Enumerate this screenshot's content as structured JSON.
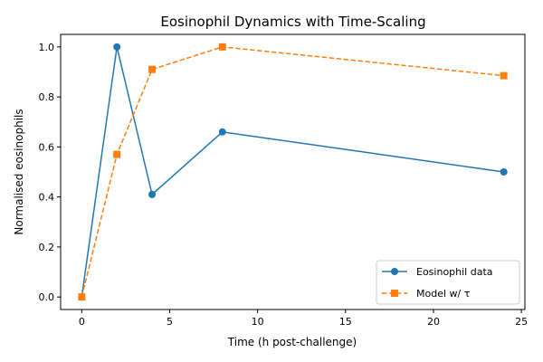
{
  "chart_data": {
    "type": "line",
    "title": "Eosinophil Dynamics with Time-Scaling",
    "xlabel": "Time (h post-challenge)",
    "ylabel": "Normalised eosinophils",
    "xlim": [
      -1.2,
      25.2
    ],
    "ylim": [
      -0.05,
      1.05
    ],
    "xticks": [
      0,
      5,
      10,
      15,
      20,
      25
    ],
    "xtick_labels": [
      "0",
      "5",
      "10",
      "15",
      "20",
      "25"
    ],
    "yticks": [
      0.0,
      0.2,
      0.4,
      0.6,
      0.8,
      1.0
    ],
    "ytick_labels": [
      "0.0",
      "0.2",
      "0.4",
      "0.6",
      "0.8",
      "1.0"
    ],
    "grid": false,
    "legend_position": "bottom-right",
    "series": [
      {
        "name": "Eosinophil data",
        "x": [
          0,
          2,
          4,
          8,
          24
        ],
        "y": [
          0.0,
          1.0,
          0.41,
          0.66,
          0.5
        ],
        "color": "#1f77b4",
        "marker": "circle",
        "line_style": "solid"
      },
      {
        "name": "Model w/ τ",
        "x": [
          0,
          2,
          4,
          8,
          24
        ],
        "y": [
          0.0,
          0.57,
          0.91,
          1.0,
          0.885
        ],
        "color": "#ff7f0e",
        "marker": "square",
        "line_style": "dashed"
      }
    ]
  }
}
